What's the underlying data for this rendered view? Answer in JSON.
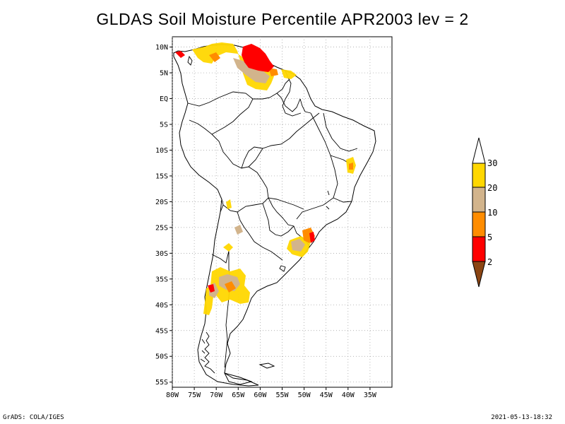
{
  "title": "GLDAS Soil Moisture Percentile APR2003 lev = 2",
  "footer": {
    "left": "GrADS: COLA/IGES",
    "right": "2021-05-13-18:32"
  },
  "map": {
    "region": "South America",
    "lon_range": [
      -80,
      -30
    ],
    "lat_range": [
      -56,
      12
    ],
    "grid": true,
    "x_ticks": [
      "80W",
      "75W",
      "70W",
      "65W",
      "60W",
      "55W",
      "50W",
      "45W",
      "40W",
      "35W"
    ],
    "x_tick_values": [
      -80,
      -75,
      -70,
      -65,
      -60,
      -55,
      -50,
      -45,
      -40,
      -35
    ],
    "y_ticks": [
      "10N",
      "5N",
      "EQ",
      "5S",
      "10S",
      "15S",
      "20S",
      "25S",
      "30S",
      "35S",
      "40S",
      "45S",
      "50S",
      "55S"
    ],
    "y_tick_values": [
      10,
      5,
      0,
      -5,
      -10,
      -15,
      -20,
      -25,
      -30,
      -35,
      -40,
      -45,
      -50,
      -55
    ]
  },
  "colorbar": {
    "labels": [
      "30",
      "20",
      "10",
      "5",
      "2"
    ],
    "label_values": [
      30,
      20,
      10,
      5,
      2
    ],
    "colors": {
      "above_30": "#ffffff",
      "20_30": "#ffd700",
      "10_20": "#d2b48c",
      "5_10": "#ff8c00",
      "2_5": "#ff0000",
      "below_2": "#8b4513"
    }
  }
}
